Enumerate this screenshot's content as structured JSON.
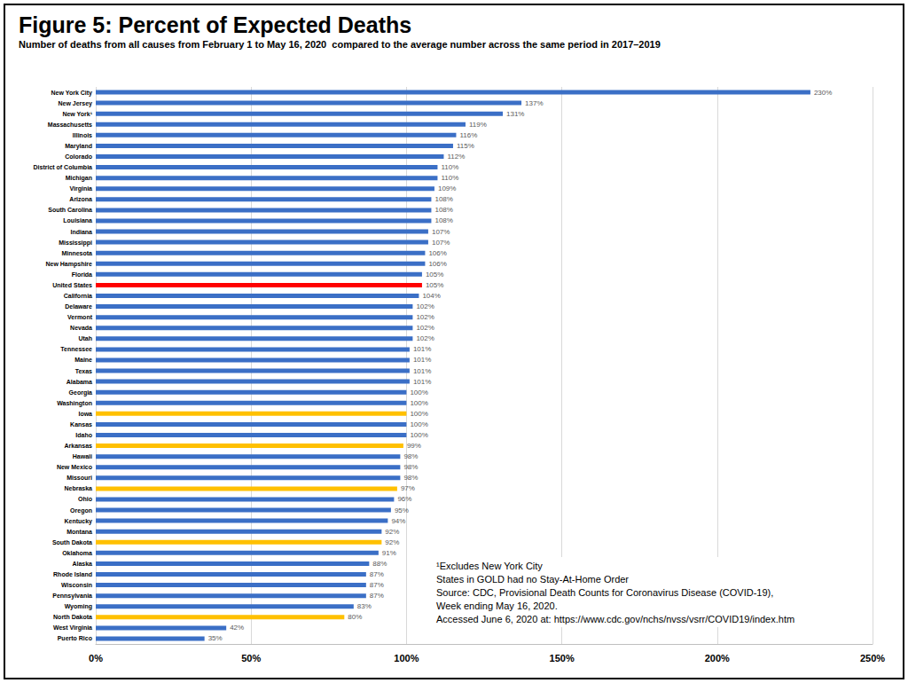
{
  "chart_data": {
    "type": "bar",
    "orientation": "horizontal",
    "title": "Figure 5: Percent of Expected Deaths",
    "subtitle": "Number of deaths from all causes from February 1 to May 16, 2020  compared to the average number across the same period in 2017–2019",
    "categories": [
      "New York City",
      "New Jersey",
      "New York¹",
      "Massachusetts",
      "Illinois",
      "Maryland",
      "Colorado",
      "District of Columbia",
      "Michigan",
      "Virginia",
      "Arizona",
      "South Carolina",
      "Louisiana",
      "Indiana",
      "Mississippi",
      "Minnesota",
      "New Hampshire",
      "Florida",
      "United States",
      "California",
      "Delaware",
      "Vermont",
      "Nevada",
      "Utah",
      "Tennessee",
      "Maine",
      "Texas",
      "Alabama",
      "Georgia",
      "Washington",
      "Iowa",
      "Kansas",
      "Idaho",
      "Arkansas",
      "Hawaii",
      "New Mexico",
      "Missouri",
      "Nebraska",
      "Ohio",
      "Oregon",
      "Kentucky",
      "Montana",
      "South Dakota",
      "Oklahoma",
      "Alaska",
      "Rhode Island",
      "Wisconsin",
      "Pennsylvania",
      "Wyoming",
      "North Dakota",
      "West Virginia",
      "Puerto Rico"
    ],
    "values": [
      230,
      137,
      131,
      119,
      116,
      115,
      112,
      110,
      110,
      109,
      108,
      108,
      108,
      107,
      107,
      106,
      106,
      105,
      105,
      104,
      102,
      102,
      102,
      102,
      101,
      101,
      101,
      101,
      100,
      100,
      100,
      100,
      100,
      99,
      98,
      98,
      98,
      97,
      96,
      95,
      94,
      92,
      92,
      91,
      88,
      87,
      87,
      87,
      83,
      80,
      42,
      35
    ],
    "value_labels": [
      "230%",
      "137%",
      "131%",
      "119%",
      "116%",
      "115%",
      "112%",
      "110%",
      "110%",
      "109%",
      "108%",
      "108%",
      "108%",
      "107%",
      "107%",
      "106%",
      "106%",
      "105%",
      "105%",
      "104%",
      "102%",
      "102%",
      "102%",
      "102%",
      "101%",
      "101%",
      "101%",
      "101%",
      "100%",
      "100%",
      "100%",
      "100%",
      "100%",
      "99%",
      "98%",
      "98%",
      "98%",
      "97%",
      "96%",
      "95%",
      "94%",
      "92%",
      "92%",
      "91%",
      "88%",
      "87%",
      "87%",
      "87%",
      "83%",
      "80%",
      "42%",
      "35%"
    ],
    "colors": [
      "#3b6fc6",
      "#3b6fc6",
      "#3b6fc6",
      "#3b6fc6",
      "#3b6fc6",
      "#3b6fc6",
      "#3b6fc6",
      "#3b6fc6",
      "#3b6fc6",
      "#3b6fc6",
      "#3b6fc6",
      "#3b6fc6",
      "#3b6fc6",
      "#3b6fc6",
      "#3b6fc6",
      "#3b6fc6",
      "#3b6fc6",
      "#3b6fc6",
      "#ff0000",
      "#3b6fc6",
      "#3b6fc6",
      "#3b6fc6",
      "#3b6fc6",
      "#3b6fc6",
      "#3b6fc6",
      "#3b6fc6",
      "#3b6fc6",
      "#3b6fc6",
      "#3b6fc6",
      "#3b6fc6",
      "#ffc000",
      "#3b6fc6",
      "#3b6fc6",
      "#ffc000",
      "#3b6fc6",
      "#3b6fc6",
      "#3b6fc6",
      "#ffc000",
      "#3b6fc6",
      "#3b6fc6",
      "#3b6fc6",
      "#3b6fc6",
      "#ffc000",
      "#3b6fc6",
      "#3b6fc6",
      "#3b6fc6",
      "#3b6fc6",
      "#3b6fc6",
      "#3b6fc6",
      "#ffc000",
      "#3b6fc6",
      "#3b6fc6"
    ],
    "xlim": [
      0,
      250
    ],
    "xticks": [
      {
        "value": 0,
        "label": "0%"
      },
      {
        "value": 50,
        "label": "50%"
      },
      {
        "value": 100,
        "label": "100%"
      },
      {
        "value": 150,
        "label": "150%"
      },
      {
        "value": 200,
        "label": "200%"
      },
      {
        "value": 250,
        "label": "250%"
      }
    ],
    "grid": true,
    "data_labels": true,
    "annotations": [
      "¹Excludes New York City",
      "States in GOLD had no Stay-At-Home Order",
      "Source: CDC, Provisional Death Counts for Coronavirus Disease (COVID-19),",
      "Week ending May 16, 2020.",
      "Accessed June 6, 2020 at: https://www.cdc.gov/nchs/nvss/vsrr/COVID19/index.htm"
    ]
  }
}
